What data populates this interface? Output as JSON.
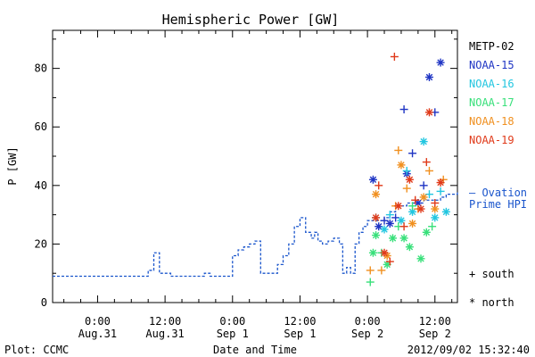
{
  "chart_data": {
    "type": "scatter",
    "title": "Hemispheric Power [GW]",
    "ylabel": "P [GW]",
    "xlabel": "Date and Time",
    "ylim": [
      0,
      93
    ],
    "xlim_hours": [
      -8,
      64
    ],
    "yticks": [
      0,
      20,
      40,
      60,
      80
    ],
    "yticks_minor": [
      10,
      30,
      50,
      70,
      90
    ],
    "xticks": [
      {
        "h": 0,
        "time": "0:00",
        "date": "Aug.31"
      },
      {
        "h": 12,
        "time": "12:00",
        "date": "Aug.31"
      },
      {
        "h": 24,
        "time": "0:00",
        "date": "Sep 1"
      },
      {
        "h": 36,
        "time": "12:00",
        "date": "Sep 1"
      },
      {
        "h": 48,
        "time": "0:00",
        "date": "Sep 2"
      },
      {
        "h": 60,
        "time": "12:00",
        "date": "Sep 2"
      }
    ],
    "footer_left": "Plot: CCMC",
    "footer_right": "2012/09/02 15:32:40",
    "legend": {
      "placement": "right",
      "ovation_label_1": "— Ovation",
      "ovation_label_2": "Prime HPI",
      "south_label": "+ south",
      "north_label": "* north"
    },
    "ovation_color": "#1a55cc",
    "ovation": [
      {
        "h": -8,
        "v": 9
      },
      {
        "h": 1,
        "v": 9
      },
      {
        "h": 8,
        "v": 9
      },
      {
        "h": 9,
        "v": 11
      },
      {
        "h": 10,
        "v": 17
      },
      {
        "h": 11,
        "v": 10
      },
      {
        "h": 13,
        "v": 9
      },
      {
        "h": 15,
        "v": 9
      },
      {
        "h": 17,
        "v": 9
      },
      {
        "h": 19,
        "v": 10
      },
      {
        "h": 20,
        "v": 9
      },
      {
        "h": 22,
        "v": 9
      },
      {
        "h": 23,
        "v": 9
      },
      {
        "h": 24,
        "v": 16
      },
      {
        "h": 25,
        "v": 18
      },
      {
        "h": 26,
        "v": 19
      },
      {
        "h": 27,
        "v": 20
      },
      {
        "h": 28,
        "v": 21
      },
      {
        "h": 29,
        "v": 10
      },
      {
        "h": 30,
        "v": 10
      },
      {
        "h": 31,
        "v": 10
      },
      {
        "h": 32,
        "v": 13
      },
      {
        "h": 33,
        "v": 16
      },
      {
        "h": 34,
        "v": 20
      },
      {
        "h": 35,
        "v": 26
      },
      {
        "h": 36,
        "v": 29
      },
      {
        "h": 37,
        "v": 24
      },
      {
        "h": 38,
        "v": 22
      },
      {
        "h": 38.6,
        "v": 24
      },
      {
        "h": 39.2,
        "v": 21
      },
      {
        "h": 40,
        "v": 20
      },
      {
        "h": 41,
        "v": 21
      },
      {
        "h": 42,
        "v": 22
      },
      {
        "h": 43,
        "v": 20
      },
      {
        "h": 43.6,
        "v": 10
      },
      {
        "h": 44.3,
        "v": 12
      },
      {
        "h": 45,
        "v": 10
      },
      {
        "h": 45.8,
        "v": 20
      },
      {
        "h": 46.5,
        "v": 24
      },
      {
        "h": 47.2,
        "v": 26
      },
      {
        "h": 48,
        "v": 28
      },
      {
        "h": 49,
        "v": 28
      },
      {
        "h": 50,
        "v": 28
      },
      {
        "h": 51,
        "v": 29
      },
      {
        "h": 52,
        "v": 31
      },
      {
        "h": 53,
        "v": 33
      },
      {
        "h": 54,
        "v": 33
      },
      {
        "h": 55,
        "v": 34
      },
      {
        "h": 56,
        "v": 34
      },
      {
        "h": 57,
        "v": 34
      },
      {
        "h": 58,
        "v": 35
      },
      {
        "h": 59,
        "v": 35
      },
      {
        "h": 60,
        "v": 35
      },
      {
        "h": 61,
        "v": 36
      },
      {
        "h": 62,
        "v": 37
      },
      {
        "h": 63,
        "v": 37
      },
      {
        "h": 64,
        "v": 38
      }
    ],
    "series": [
      {
        "name": "METP-02",
        "color": "#000000",
        "points": []
      },
      {
        "name": "NOAA-15",
        "color": "#1f35c4",
        "points": [
          {
            "h": 49,
            "v": 42,
            "m": "*"
          },
          {
            "h": 50,
            "v": 26,
            "m": "*"
          },
          {
            "h": 51,
            "v": 28,
            "m": "+"
          },
          {
            "h": 52,
            "v": 27,
            "m": "*"
          },
          {
            "h": 53,
            "v": 29,
            "m": "+"
          },
          {
            "h": 54.5,
            "v": 66,
            "m": "+"
          },
          {
            "h": 55,
            "v": 44,
            "m": "*"
          },
          {
            "h": 56,
            "v": 51,
            "m": "+"
          },
          {
            "h": 57,
            "v": 34,
            "m": "*"
          },
          {
            "h": 58,
            "v": 40,
            "m": "+"
          },
          {
            "h": 59,
            "v": 77,
            "m": "*"
          },
          {
            "h": 60,
            "v": 65,
            "m": "+"
          },
          {
            "h": 61,
            "v": 82,
            "m": "*"
          }
        ]
      },
      {
        "name": "NOAA-16",
        "color": "#22c6e0",
        "points": [
          {
            "h": 49.5,
            "v": 29,
            "m": "+"
          },
          {
            "h": 51,
            "v": 25,
            "m": "*"
          },
          {
            "h": 52,
            "v": 30,
            "m": "+"
          },
          {
            "h": 54,
            "v": 28,
            "m": "*"
          },
          {
            "h": 55,
            "v": 45,
            "m": "+"
          },
          {
            "h": 56,
            "v": 31,
            "m": "*"
          },
          {
            "h": 58,
            "v": 55,
            "m": "*"
          },
          {
            "h": 59,
            "v": 37,
            "m": "+"
          },
          {
            "h": 60,
            "v": 29,
            "m": "*"
          },
          {
            "h": 61,
            "v": 38,
            "m": "+"
          },
          {
            "h": 62,
            "v": 31,
            "m": "*"
          }
        ]
      },
      {
        "name": "NOAA-17",
        "color": "#38e07a",
        "points": [
          {
            "h": 48.5,
            "v": 7,
            "m": "+"
          },
          {
            "h": 49,
            "v": 17,
            "m": "*"
          },
          {
            "h": 49.5,
            "v": 23,
            "m": "*"
          },
          {
            "h": 50.5,
            "v": 17,
            "m": "+"
          },
          {
            "h": 51.5,
            "v": 13,
            "m": "*"
          },
          {
            "h": 52.5,
            "v": 22,
            "m": "*"
          },
          {
            "h": 53.5,
            "v": 26,
            "m": "+"
          },
          {
            "h": 54.5,
            "v": 22,
            "m": "*"
          },
          {
            "h": 55.5,
            "v": 19,
            "m": "*"
          },
          {
            "h": 56,
            "v": 33,
            "m": "+"
          },
          {
            "h": 57.5,
            "v": 15,
            "m": "*"
          },
          {
            "h": 58.5,
            "v": 24,
            "m": "*"
          },
          {
            "h": 59.5,
            "v": 26,
            "m": "+"
          }
        ]
      },
      {
        "name": "NOAA-18",
        "color": "#f09020",
        "points": [
          {
            "h": 48.5,
            "v": 11,
            "m": "+"
          },
          {
            "h": 49.5,
            "v": 37,
            "m": "*"
          },
          {
            "h": 50.5,
            "v": 11,
            "m": "+"
          },
          {
            "h": 51.5,
            "v": 16,
            "m": "*"
          },
          {
            "h": 53,
            "v": 33,
            "m": "+"
          },
          {
            "h": 53.5,
            "v": 52,
            "m": "+"
          },
          {
            "h": 54,
            "v": 47,
            "m": "*"
          },
          {
            "h": 55,
            "v": 39,
            "m": "+"
          },
          {
            "h": 56,
            "v": 27,
            "m": "*"
          },
          {
            "h": 57,
            "v": 32,
            "m": "+"
          },
          {
            "h": 58,
            "v": 36,
            "m": "*"
          },
          {
            "h": 59,
            "v": 45,
            "m": "+"
          },
          {
            "h": 60,
            "v": 32,
            "m": "*"
          },
          {
            "h": 61.5,
            "v": 42,
            "m": "+"
          }
        ]
      },
      {
        "name": "NOAA-19",
        "color": "#e03a1a",
        "points": [
          {
            "h": 49.5,
            "v": 29,
            "m": "*"
          },
          {
            "h": 50,
            "v": 40,
            "m": "+"
          },
          {
            "h": 51,
            "v": 17,
            "m": "*"
          },
          {
            "h": 52,
            "v": 14,
            "m": "+"
          },
          {
            "h": 52.8,
            "v": 84,
            "m": "+"
          },
          {
            "h": 53.5,
            "v": 33,
            "m": "*"
          },
          {
            "h": 54.5,
            "v": 26,
            "m": "+"
          },
          {
            "h": 55.5,
            "v": 42,
            "m": "*"
          },
          {
            "h": 56.5,
            "v": 35,
            "m": "+"
          },
          {
            "h": 57.5,
            "v": 32,
            "m": "*"
          },
          {
            "h": 58.5,
            "v": 48,
            "m": "+"
          },
          {
            "h": 59,
            "v": 65,
            "m": "*"
          },
          {
            "h": 60,
            "v": 34,
            "m": "+"
          },
          {
            "h": 61,
            "v": 41,
            "m": "*"
          }
        ]
      }
    ]
  }
}
